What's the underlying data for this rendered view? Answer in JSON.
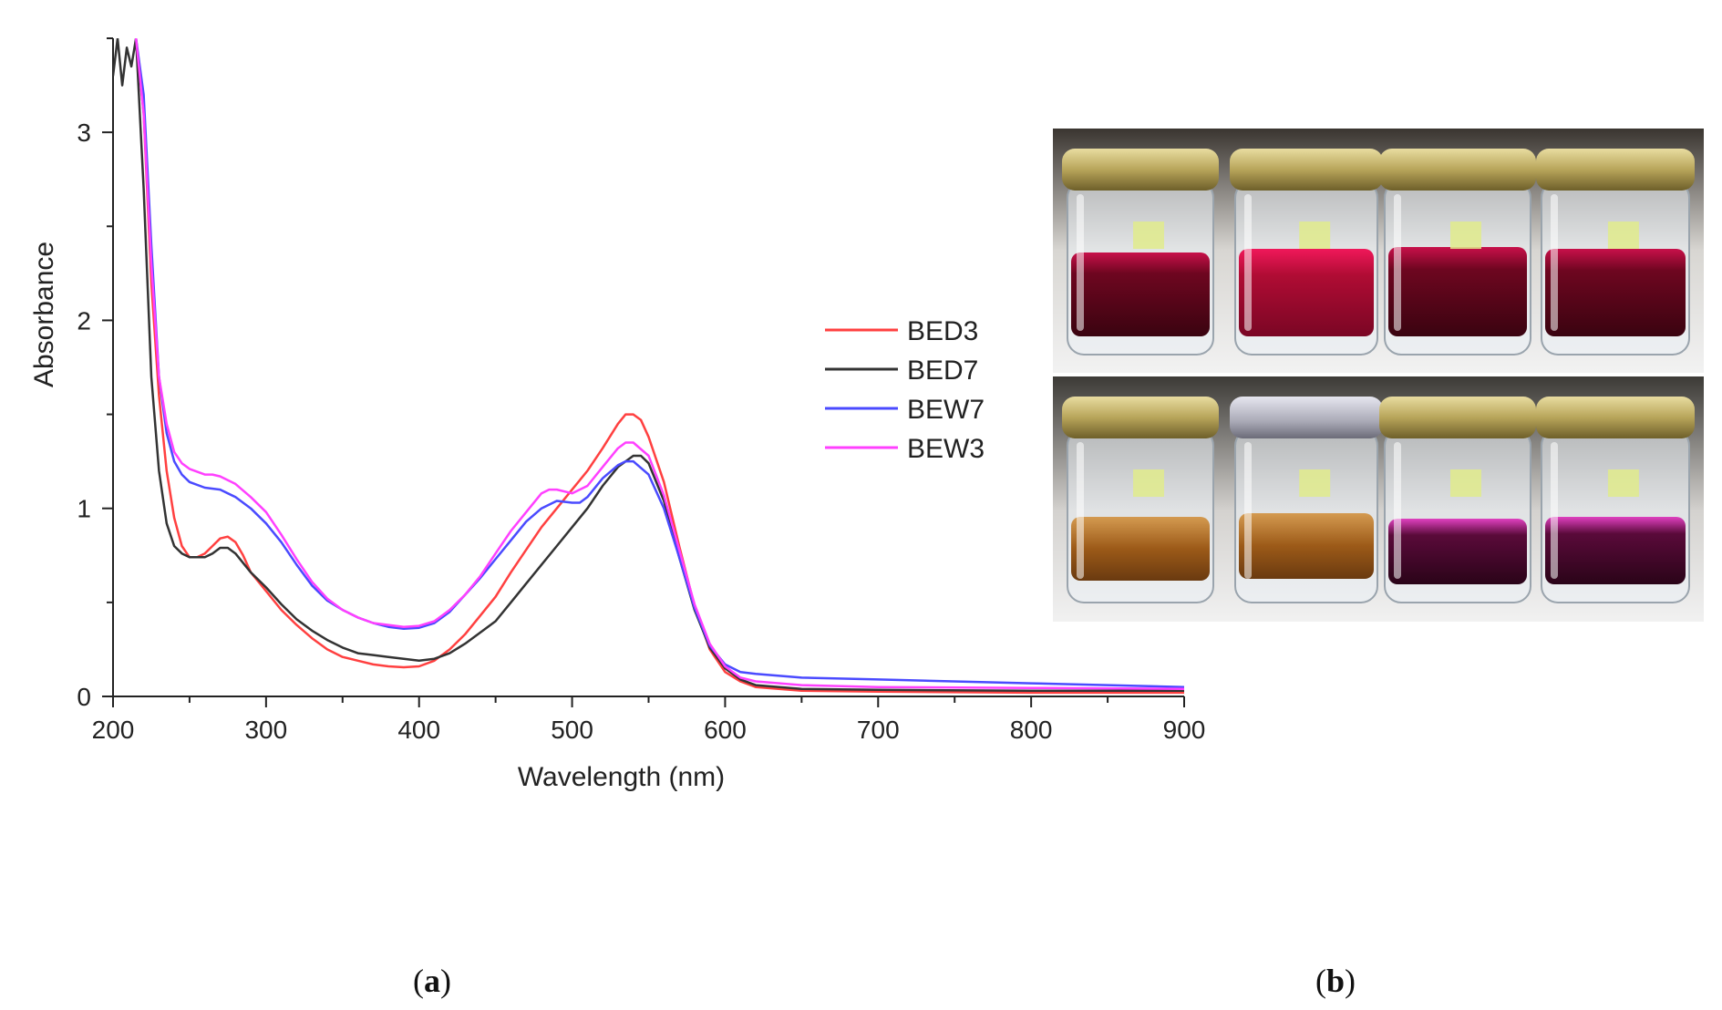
{
  "chart_data": {
    "type": "line",
    "title": "",
    "xlabel": "Wavelength (nm)",
    "ylabel": "Absorbance",
    "xlim": [
      200,
      900
    ],
    "ylim": [
      0,
      3.5
    ],
    "xticks": [
      200,
      300,
      400,
      500,
      600,
      700,
      800,
      900
    ],
    "yticks": [
      0,
      1,
      2,
      3
    ],
    "legend_position": "right",
    "series": [
      {
        "name": "BED3",
        "color": "#ff4040",
        "points": [
          [
            215,
            3.5
          ],
          [
            220,
            3.1
          ],
          [
            225,
            2.2
          ],
          [
            230,
            1.6
          ],
          [
            235,
            1.2
          ],
          [
            240,
            0.95
          ],
          [
            245,
            0.8
          ],
          [
            250,
            0.74
          ],
          [
            255,
            0.74
          ],
          [
            260,
            0.76
          ],
          [
            265,
            0.8
          ],
          [
            270,
            0.84
          ],
          [
            275,
            0.85
          ],
          [
            280,
            0.82
          ],
          [
            285,
            0.75
          ],
          [
            290,
            0.66
          ],
          [
            300,
            0.56
          ],
          [
            310,
            0.46
          ],
          [
            320,
            0.38
          ],
          [
            330,
            0.31
          ],
          [
            340,
            0.25
          ],
          [
            350,
            0.21
          ],
          [
            360,
            0.19
          ],
          [
            370,
            0.17
          ],
          [
            380,
            0.16
          ],
          [
            390,
            0.155
          ],
          [
            400,
            0.16
          ],
          [
            410,
            0.19
          ],
          [
            420,
            0.25
          ],
          [
            430,
            0.33
          ],
          [
            440,
            0.43
          ],
          [
            450,
            0.53
          ],
          [
            460,
            0.66
          ],
          [
            470,
            0.78
          ],
          [
            480,
            0.9
          ],
          [
            490,
            1.0
          ],
          [
            500,
            1.1
          ],
          [
            510,
            1.2
          ],
          [
            520,
            1.32
          ],
          [
            530,
            1.45
          ],
          [
            535,
            1.5
          ],
          [
            540,
            1.5
          ],
          [
            545,
            1.47
          ],
          [
            550,
            1.38
          ],
          [
            560,
            1.14
          ],
          [
            570,
            0.8
          ],
          [
            580,
            0.48
          ],
          [
            590,
            0.25
          ],
          [
            600,
            0.13
          ],
          [
            610,
            0.08
          ],
          [
            620,
            0.05
          ],
          [
            650,
            0.03
          ],
          [
            700,
            0.025
          ],
          [
            800,
            0.02
          ],
          [
            900,
            0.02
          ]
        ]
      },
      {
        "name": "BED7",
        "color": "#333333",
        "points": [
          [
            200,
            3.3
          ],
          [
            203,
            3.5
          ],
          [
            206,
            3.25
          ],
          [
            209,
            3.45
          ],
          [
            212,
            3.35
          ],
          [
            215,
            3.5
          ],
          [
            220,
            2.7
          ],
          [
            225,
            1.7
          ],
          [
            230,
            1.2
          ],
          [
            235,
            0.92
          ],
          [
            240,
            0.8
          ],
          [
            245,
            0.76
          ],
          [
            250,
            0.74
          ],
          [
            260,
            0.74
          ],
          [
            265,
            0.76
          ],
          [
            270,
            0.79
          ],
          [
            275,
            0.79
          ],
          [
            280,
            0.76
          ],
          [
            290,
            0.66
          ],
          [
            300,
            0.58
          ],
          [
            310,
            0.49
          ],
          [
            320,
            0.41
          ],
          [
            330,
            0.35
          ],
          [
            340,
            0.3
          ],
          [
            350,
            0.26
          ],
          [
            360,
            0.23
          ],
          [
            370,
            0.22
          ],
          [
            380,
            0.21
          ],
          [
            390,
            0.2
          ],
          [
            400,
            0.19
          ],
          [
            410,
            0.2
          ],
          [
            420,
            0.23
          ],
          [
            430,
            0.28
          ],
          [
            440,
            0.34
          ],
          [
            450,
            0.4
          ],
          [
            460,
            0.5
          ],
          [
            470,
            0.6
          ],
          [
            480,
            0.7
          ],
          [
            490,
            0.8
          ],
          [
            500,
            0.9
          ],
          [
            510,
            1.0
          ],
          [
            520,
            1.12
          ],
          [
            530,
            1.22
          ],
          [
            540,
            1.28
          ],
          [
            545,
            1.28
          ],
          [
            550,
            1.24
          ],
          [
            560,
            1.04
          ],
          [
            570,
            0.74
          ],
          [
            580,
            0.46
          ],
          [
            590,
            0.26
          ],
          [
            600,
            0.15
          ],
          [
            610,
            0.09
          ],
          [
            620,
            0.06
          ],
          [
            650,
            0.04
          ],
          [
            700,
            0.035
          ],
          [
            800,
            0.03
          ],
          [
            900,
            0.03
          ]
        ]
      },
      {
        "name": "BEW7",
        "color": "#4a4aff",
        "points": [
          [
            215,
            3.5
          ],
          [
            220,
            3.2
          ],
          [
            225,
            2.4
          ],
          [
            230,
            1.7
          ],
          [
            235,
            1.4
          ],
          [
            240,
            1.25
          ],
          [
            245,
            1.18
          ],
          [
            250,
            1.14
          ],
          [
            260,
            1.11
          ],
          [
            270,
            1.1
          ],
          [
            280,
            1.06
          ],
          [
            290,
            1.0
          ],
          [
            300,
            0.92
          ],
          [
            310,
            0.82
          ],
          [
            320,
            0.7
          ],
          [
            330,
            0.59
          ],
          [
            340,
            0.51
          ],
          [
            350,
            0.46
          ],
          [
            360,
            0.42
          ],
          [
            370,
            0.39
          ],
          [
            380,
            0.37
          ],
          [
            390,
            0.36
          ],
          [
            400,
            0.365
          ],
          [
            410,
            0.39
          ],
          [
            420,
            0.45
          ],
          [
            430,
            0.54
          ],
          [
            440,
            0.63
          ],
          [
            450,
            0.73
          ],
          [
            460,
            0.83
          ],
          [
            470,
            0.93
          ],
          [
            480,
            1.0
          ],
          [
            490,
            1.04
          ],
          [
            500,
            1.03
          ],
          [
            505,
            1.03
          ],
          [
            510,
            1.06
          ],
          [
            520,
            1.16
          ],
          [
            530,
            1.23
          ],
          [
            535,
            1.25
          ],
          [
            540,
            1.25
          ],
          [
            550,
            1.18
          ],
          [
            560,
            1.0
          ],
          [
            570,
            0.74
          ],
          [
            580,
            0.47
          ],
          [
            590,
            0.27
          ],
          [
            600,
            0.17
          ],
          [
            610,
            0.13
          ],
          [
            620,
            0.12
          ],
          [
            650,
            0.1
          ],
          [
            700,
            0.09
          ],
          [
            800,
            0.07
          ],
          [
            900,
            0.05
          ]
        ]
      },
      {
        "name": "BEW3",
        "color": "#ff40ff",
        "points": [
          [
            215,
            3.5
          ],
          [
            220,
            3.1
          ],
          [
            225,
            2.3
          ],
          [
            230,
            1.7
          ],
          [
            235,
            1.45
          ],
          [
            240,
            1.3
          ],
          [
            245,
            1.24
          ],
          [
            250,
            1.21
          ],
          [
            260,
            1.18
          ],
          [
            265,
            1.18
          ],
          [
            270,
            1.17
          ],
          [
            280,
            1.13
          ],
          [
            290,
            1.06
          ],
          [
            300,
            0.98
          ],
          [
            310,
            0.86
          ],
          [
            320,
            0.73
          ],
          [
            330,
            0.61
          ],
          [
            340,
            0.52
          ],
          [
            350,
            0.46
          ],
          [
            360,
            0.42
          ],
          [
            370,
            0.39
          ],
          [
            380,
            0.38
          ],
          [
            390,
            0.37
          ],
          [
            400,
            0.375
          ],
          [
            410,
            0.4
          ],
          [
            420,
            0.46
          ],
          [
            430,
            0.54
          ],
          [
            440,
            0.64
          ],
          [
            450,
            0.76
          ],
          [
            460,
            0.88
          ],
          [
            470,
            0.98
          ],
          [
            480,
            1.08
          ],
          [
            485,
            1.1
          ],
          [
            490,
            1.1
          ],
          [
            500,
            1.08
          ],
          [
            510,
            1.12
          ],
          [
            520,
            1.22
          ],
          [
            530,
            1.32
          ],
          [
            535,
            1.35
          ],
          [
            540,
            1.35
          ],
          [
            550,
            1.28
          ],
          [
            560,
            1.07
          ],
          [
            570,
            0.78
          ],
          [
            580,
            0.49
          ],
          [
            590,
            0.28
          ],
          [
            600,
            0.16
          ],
          [
            610,
            0.1
          ],
          [
            620,
            0.08
          ],
          [
            650,
            0.06
          ],
          [
            700,
            0.05
          ],
          [
            800,
            0.045
          ],
          [
            900,
            0.04
          ]
        ]
      }
    ]
  },
  "panels": {
    "a": "a",
    "b": "b"
  }
}
